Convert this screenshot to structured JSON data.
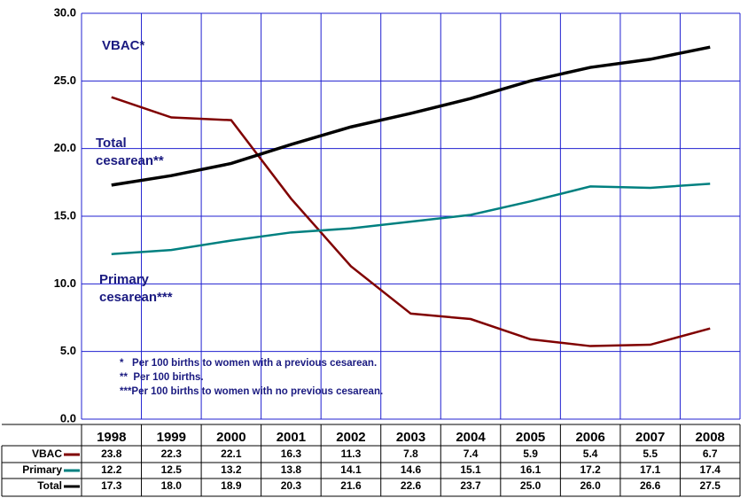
{
  "chart_data": {
    "type": "line",
    "categories": [
      "1998",
      "1999",
      "2000",
      "2001",
      "2002",
      "2003",
      "2004",
      "2005",
      "2006",
      "2007",
      "2008"
    ],
    "series": [
      {
        "name": "VBAC",
        "color": "#800000",
        "values": [
          23.8,
          22.3,
          22.1,
          16.3,
          11.3,
          7.8,
          7.4,
          5.9,
          5.4,
          5.5,
          6.7
        ],
        "value_labels": [
          "23.8",
          "22.3",
          "22.1",
          "16.3",
          "11.3",
          "7.8",
          "7.4",
          "5.9",
          "5.4",
          "5.5",
          "6.7"
        ]
      },
      {
        "name": "Primary",
        "color": "#008080",
        "values": [
          12.2,
          12.5,
          13.2,
          13.8,
          14.1,
          14.6,
          15.1,
          16.1,
          17.2,
          17.1,
          17.4
        ],
        "value_labels": [
          "12.2",
          "12.5",
          "13.2",
          "13.8",
          "14.1",
          "14.6",
          "15.1",
          "16.1",
          "17.2",
          "17.1",
          "17.4"
        ]
      },
      {
        "name": "Total",
        "color": "#000000",
        "values": [
          17.3,
          18.0,
          18.9,
          20.3,
          21.6,
          22.6,
          23.7,
          25.0,
          26.0,
          26.6,
          27.5
        ],
        "value_labels": [
          "17.3",
          "18.0",
          "18.9",
          "20.3",
          "21.6",
          "22.6",
          "23.7",
          "25.0",
          "26.0",
          "26.6",
          "27.5"
        ]
      }
    ],
    "ylim": [
      0,
      30
    ],
    "yticks": [
      {
        "value": 0,
        "label": "0.0"
      },
      {
        "value": 5,
        "label": "5.0"
      },
      {
        "value": 10,
        "label": "10.0"
      },
      {
        "value": 15,
        "label": "15.0"
      },
      {
        "value": 20,
        "label": "20.0"
      },
      {
        "value": 25,
        "label": "25.0"
      },
      {
        "value": 30,
        "label": "30.0"
      }
    ],
    "grid": true,
    "annotations": [
      "VBAC*",
      "Total",
      "cesarean**",
      "Primary",
      "cesarean***"
    ],
    "footnotes": [
      "*   Per 100 births to women with a previous cesarean.",
      "**  Per 100 births.",
      "***Per 100 births to women with no previous cesarean."
    ]
  }
}
